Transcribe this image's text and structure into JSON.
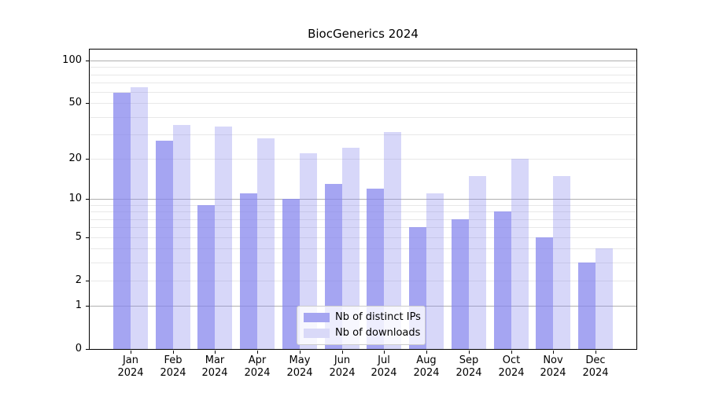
{
  "figure": {
    "title": "BiocGenerics 2024"
  },
  "legend": {
    "items": [
      {
        "label": "Nb of distinct IPs",
        "swatch": "#a5a5f1"
      },
      {
        "label": "Nb of downloads",
        "swatch": "#d9d9f8"
      }
    ]
  },
  "axes": {
    "y_tick_values": [
      100,
      50,
      20,
      10,
      5,
      2,
      1,
      0
    ],
    "gridline_values": [
      1,
      2,
      3,
      4,
      5,
      6,
      7,
      8,
      9,
      10,
      20,
      30,
      40,
      50,
      60,
      70,
      80,
      90,
      100
    ],
    "dark_gridline_values": [
      1,
      10,
      100
    ]
  },
  "chart_data": {
    "type": "bar",
    "title": "BiocGenerics 2024",
    "categories": [
      "Jan 2024",
      "Feb 2024",
      "Mar 2024",
      "Apr 2024",
      "May 2024",
      "Jun 2024",
      "Jul 2024",
      "Aug 2024",
      "Sep 2024",
      "Oct 2024",
      "Nov 2024",
      "Dec 2024"
    ],
    "series": [
      {
        "name": "Nb of distinct IPs",
        "color": "rgba(134,134,238,0.74)",
        "solid_color": "#a5a5f1",
        "values": [
          59,
          27,
          9,
          11,
          10,
          13,
          12,
          6,
          7,
          8,
          5,
          3
        ]
      },
      {
        "name": "Nb of downloads",
        "color": "rgba(134,134,238,0.33)",
        "solid_color": "#d9d9f8",
        "values": [
          65,
          35,
          34,
          28,
          22,
          24,
          31,
          11,
          15,
          20,
          15,
          4
        ]
      }
    ],
    "xlabel": "",
    "ylabel": "",
    "yscale": "log1p",
    "yticks": [
      0,
      1,
      2,
      5,
      10,
      20,
      50,
      100
    ],
    "ylim": [
      0,
      123
    ],
    "grid": true,
    "legend_position": "lower center"
  }
}
